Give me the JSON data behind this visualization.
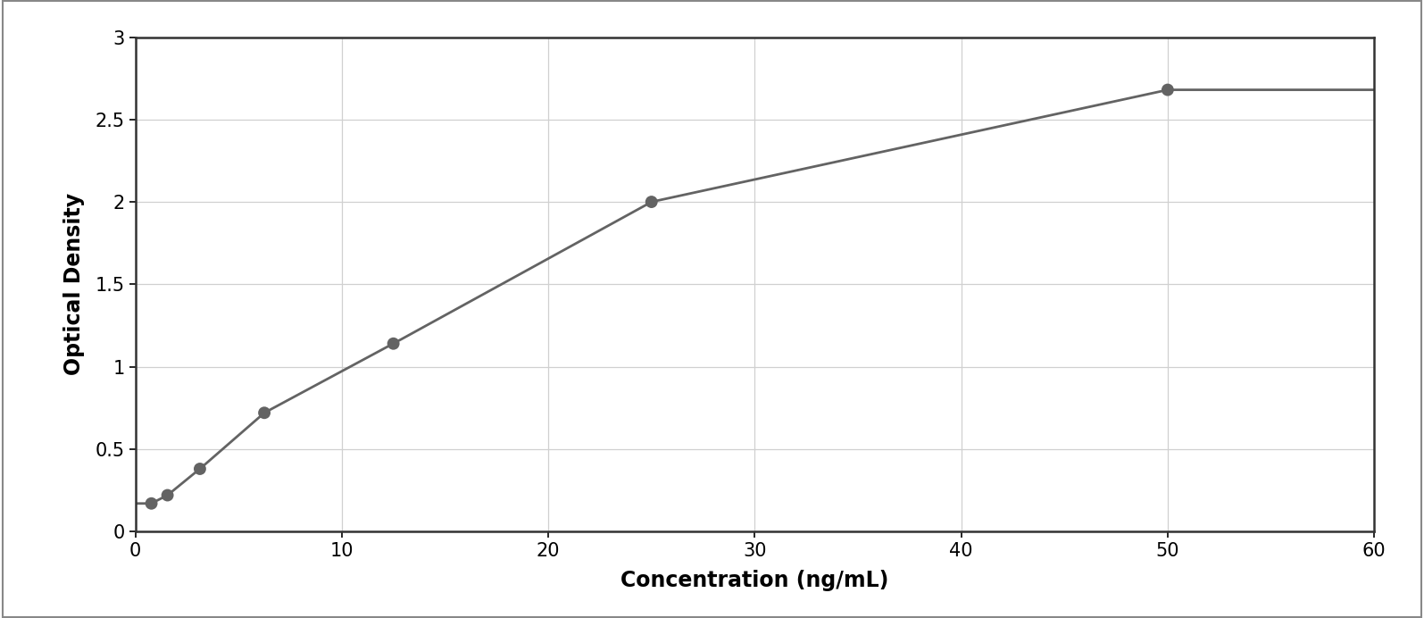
{
  "x_data": [
    0.78,
    1.56,
    3.13,
    6.25,
    12.5,
    25.0,
    50.0
  ],
  "y_data": [
    0.17,
    0.22,
    0.38,
    0.72,
    1.14,
    2.0,
    2.68
  ],
  "xlabel": "Concentration (ng/mL)",
  "ylabel": "Optical Density",
  "xlim": [
    0,
    60
  ],
  "ylim": [
    0,
    3
  ],
  "xticks": [
    0,
    10,
    20,
    30,
    40,
    50,
    60
  ],
  "yticks": [
    0,
    0.5,
    1.0,
    1.5,
    2.0,
    2.5,
    3.0
  ],
  "point_color": "#636363",
  "line_color": "#636363",
  "grid_color": "#d0d0d0",
  "background_color": "#ffffff",
  "border_color": "#333333",
  "figure_background": "#ffffff",
  "xlabel_fontsize": 17,
  "ylabel_fontsize": 17,
  "tick_fontsize": 15,
  "point_size": 100,
  "line_width": 2.0,
  "figure_border_color": "#888888"
}
